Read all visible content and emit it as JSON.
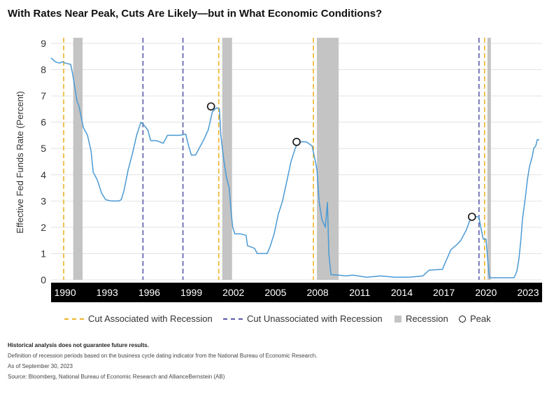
{
  "chart_data": {
    "type": "line",
    "title": "With Rates Near Peak, Cuts Are Likely—but in What Economic Conditions?",
    "ylabel": "Effective Fed Funds Rate (Percent)",
    "xlabel": "",
    "xlim": [
      1989.0,
      2024.0
    ],
    "ylim": [
      0,
      9
    ],
    "y_ticks": [
      "0",
      "1",
      "2",
      "3",
      "4",
      "5",
      "6",
      "7",
      "8",
      "9"
    ],
    "x_ticks": [
      {
        "year": 1990,
        "label": "1990"
      },
      {
        "year": 1993,
        "label": "1993"
      },
      {
        "year": 1996,
        "label": "1996"
      },
      {
        "year": 1999,
        "label": "1999"
      },
      {
        "year": 2002,
        "label": "2002"
      },
      {
        "year": 2005,
        "label": "2005"
      },
      {
        "year": 2008,
        "label": "2008"
      },
      {
        "year": 2011,
        "label": "2011"
      },
      {
        "year": 2014,
        "label": "2014"
      },
      {
        "year": 2017,
        "label": "2017"
      },
      {
        "year": 2020,
        "label": "2020"
      },
      {
        "year": 2023,
        "label": "2023"
      }
    ],
    "grid": "horizontal",
    "line_color": "#4a9ad4",
    "series": [
      {
        "values": [
          [
            1989.0,
            8.45
          ],
          [
            1989.3,
            8.3
          ],
          [
            1989.6,
            8.25
          ],
          [
            1989.8,
            8.3
          ],
          [
            1990.0,
            8.25
          ],
          [
            1990.4,
            8.2
          ],
          [
            1990.55,
            7.8
          ],
          [
            1990.7,
            7.3
          ],
          [
            1990.85,
            6.8
          ],
          [
            1991.0,
            6.6
          ],
          [
            1991.3,
            5.8
          ],
          [
            1991.6,
            5.5
          ],
          [
            1991.85,
            4.9
          ],
          [
            1992.0,
            4.1
          ],
          [
            1992.3,
            3.8
          ],
          [
            1992.6,
            3.3
          ],
          [
            1992.9,
            3.05
          ],
          [
            1993.3,
            3.0
          ],
          [
            1993.8,
            3.0
          ],
          [
            1994.0,
            3.05
          ],
          [
            1994.2,
            3.4
          ],
          [
            1994.5,
            4.2
          ],
          [
            1994.8,
            4.8
          ],
          [
            1995.1,
            5.5
          ],
          [
            1995.4,
            6.0
          ],
          [
            1995.6,
            5.9
          ],
          [
            1995.9,
            5.7
          ],
          [
            1996.1,
            5.3
          ],
          [
            1996.5,
            5.3
          ],
          [
            1997.0,
            5.2
          ],
          [
            1997.3,
            5.5
          ],
          [
            1997.7,
            5.5
          ],
          [
            1998.2,
            5.5
          ],
          [
            1998.6,
            5.55
          ],
          [
            1998.8,
            5.1
          ],
          [
            1999.0,
            4.75
          ],
          [
            1999.3,
            4.75
          ],
          [
            1999.6,
            5.05
          ],
          [
            1999.9,
            5.35
          ],
          [
            2000.2,
            5.7
          ],
          [
            2000.5,
            6.4
          ],
          [
            2000.8,
            6.55
          ],
          [
            2001.0,
            6.5
          ],
          [
            2001.1,
            5.5
          ],
          [
            2001.3,
            4.6
          ],
          [
            2001.5,
            3.9
          ],
          [
            2001.7,
            3.5
          ],
          [
            2001.85,
            2.5
          ],
          [
            2001.95,
            2.0
          ],
          [
            2002.1,
            1.75
          ],
          [
            2002.5,
            1.75
          ],
          [
            2002.9,
            1.7
          ],
          [
            2003.0,
            1.3
          ],
          [
            2003.5,
            1.2
          ],
          [
            2003.7,
            1.0
          ],
          [
            2004.4,
            1.0
          ],
          [
            2004.6,
            1.25
          ],
          [
            2004.9,
            1.75
          ],
          [
            2005.2,
            2.5
          ],
          [
            2005.5,
            3.0
          ],
          [
            2005.8,
            3.75
          ],
          [
            2006.1,
            4.5
          ],
          [
            2006.4,
            5.0
          ],
          [
            2006.6,
            5.25
          ],
          [
            2007.2,
            5.25
          ],
          [
            2007.6,
            5.1
          ],
          [
            2007.8,
            4.6
          ],
          [
            2007.95,
            4.2
          ],
          [
            2008.1,
            3.0
          ],
          [
            2008.3,
            2.3
          ],
          [
            2008.55,
            2.0
          ],
          [
            2008.7,
            2.95
          ],
          [
            2008.8,
            1.0
          ],
          [
            2008.95,
            0.2
          ],
          [
            2009.5,
            0.18
          ],
          [
            2010.0,
            0.15
          ],
          [
            2010.5,
            0.18
          ],
          [
            2011.5,
            0.1
          ],
          [
            2012.5,
            0.15
          ],
          [
            2013.5,
            0.1
          ],
          [
            2014.5,
            0.1
          ],
          [
            2015.5,
            0.15
          ],
          [
            2015.95,
            0.37
          ],
          [
            2016.9,
            0.4
          ],
          [
            2017.1,
            0.66
          ],
          [
            2017.3,
            0.9
          ],
          [
            2017.5,
            1.15
          ],
          [
            2017.9,
            1.33
          ],
          [
            2018.2,
            1.5
          ],
          [
            2018.4,
            1.7
          ],
          [
            2018.6,
            1.9
          ],
          [
            2018.8,
            2.2
          ],
          [
            2019.0,
            2.4
          ],
          [
            2019.5,
            2.4
          ],
          [
            2019.6,
            2.1
          ],
          [
            2019.8,
            1.55
          ],
          [
            2020.0,
            1.55
          ],
          [
            2020.15,
            0.6
          ],
          [
            2020.25,
            0.08
          ],
          [
            2021.0,
            0.08
          ],
          [
            2022.0,
            0.08
          ],
          [
            2022.2,
            0.33
          ],
          [
            2022.35,
            0.8
          ],
          [
            2022.5,
            1.6
          ],
          [
            2022.6,
            2.3
          ],
          [
            2022.8,
            3.1
          ],
          [
            2022.95,
            3.8
          ],
          [
            2023.1,
            4.3
          ],
          [
            2023.3,
            4.7
          ],
          [
            2023.4,
            5.0
          ],
          [
            2023.55,
            5.1
          ],
          [
            2023.65,
            5.33
          ],
          [
            2023.8,
            5.33
          ]
        ]
      }
    ],
    "recessions": [
      [
        1990.58,
        1991.25
      ],
      [
        2001.2,
        2001.9
      ],
      [
        2007.95,
        2009.5
      ],
      [
        2020.1,
        2020.35
      ]
    ],
    "cuts_with_recession": [
      1989.9,
      2000.95,
      2007.7,
      2019.9
    ],
    "cuts_without_recession": [
      1995.55,
      1998.4,
      2019.5
    ],
    "peaks": [
      {
        "x": 2000.4,
        "y": 6.6
      },
      {
        "x": 2006.5,
        "y": 5.25
      },
      {
        "x": 2019.0,
        "y": 2.4
      }
    ],
    "legend": {
      "placement": "bottom",
      "items": [
        {
          "label": "Cut Associated with Recession",
          "type": "dashed-line",
          "color": "#f0b429"
        },
        {
          "label": "Cut Unassociated with Recession",
          "type": "dashed-line",
          "color": "#5a5aa8"
        },
        {
          "label": "Recession",
          "type": "box",
          "color": "#c4c4c4"
        },
        {
          "label": "Peak",
          "type": "circle",
          "color": "#111111"
        }
      ]
    }
  },
  "footnotes": {
    "disclaimer": "Historical analysis does not guarantee future results.",
    "definition": "Definition of recession periods based on the business cycle dating indicator from the National Bureau of Economic Research.",
    "asof": "As of September 30, 2023",
    "source": "Source: Bloomberg, National Bureau of Economic Research and AllianceBernstein (AB)"
  }
}
